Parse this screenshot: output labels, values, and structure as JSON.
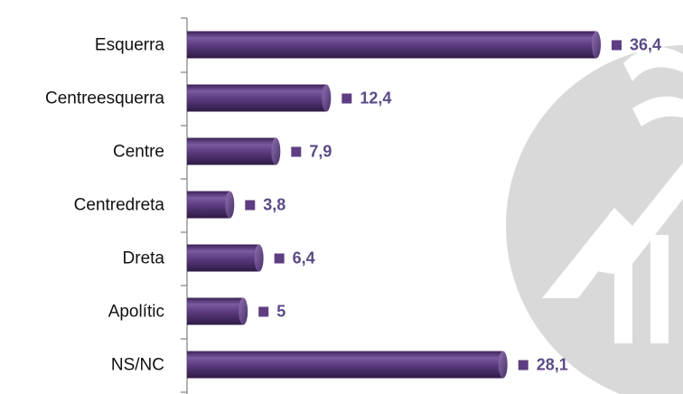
{
  "chart_data": {
    "type": "bar",
    "orientation": "horizontal",
    "categories": [
      "Esquerra",
      "Centreesquerra",
      "Centre",
      "Centredreta",
      "Dreta",
      "Apolític",
      "NS/NC"
    ],
    "values": [
      36.4,
      12.4,
      7.9,
      3.8,
      6.4,
      5,
      28.1
    ],
    "value_labels": [
      "36,4",
      "12,4",
      "7,9",
      "3,8",
      "6,4",
      "5",
      "28,1"
    ],
    "color": "#5e3d82"
  }
}
